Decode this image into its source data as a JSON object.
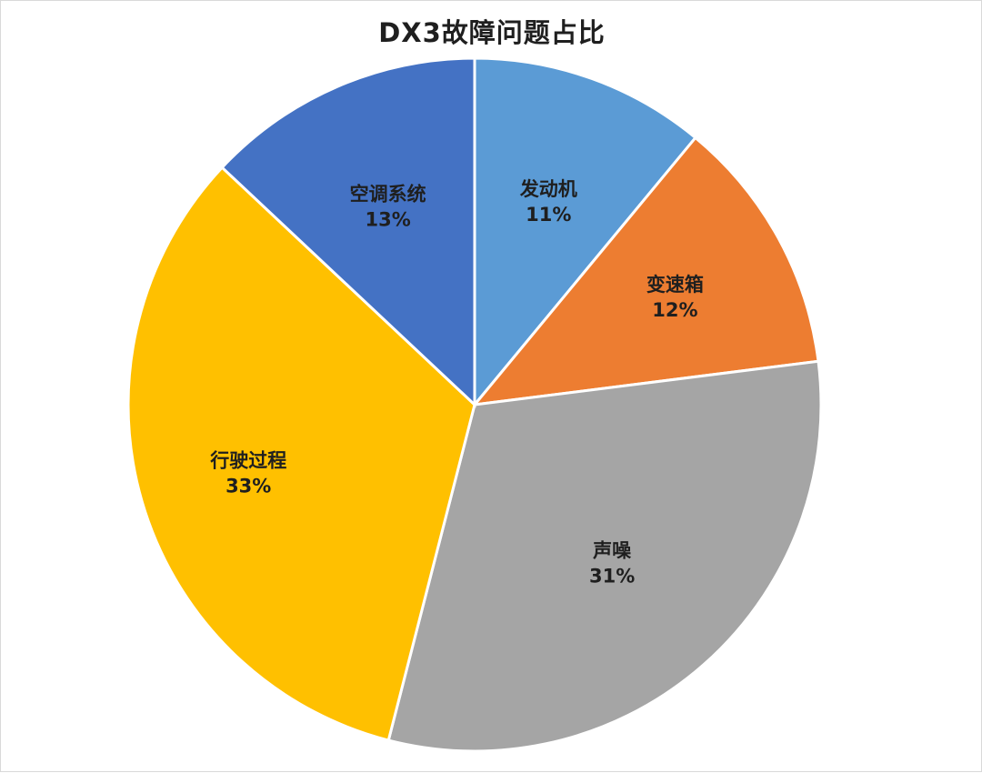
{
  "chart_data": {
    "type": "pie",
    "title": "DX3故障问题占比",
    "slices": [
      {
        "label": "发动机",
        "value": 11,
        "percent_label": "11%",
        "color": "#5b9bd5"
      },
      {
        "label": "变速箱",
        "value": 12,
        "percent_label": "12%",
        "color": "#ed7d31"
      },
      {
        "label": "声噪",
        "value": 31,
        "percent_label": "31%",
        "color": "#a5a5a5"
      },
      {
        "label": "行驶过程",
        "value": 33,
        "percent_label": "33%",
        "color": "#ffc000"
      },
      {
        "label": "空调系统",
        "value": 13,
        "percent_label": "13%",
        "color": "#4472c4"
      }
    ],
    "start_angle_deg": 0,
    "direction": "clockwise",
    "legend": "none"
  }
}
